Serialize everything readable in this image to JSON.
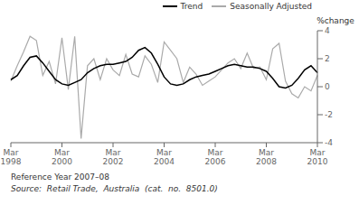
{
  "chart_data": {
    "type": "line",
    "categories": [
      "Mar\n1998",
      null,
      null,
      null,
      null,
      null,
      null,
      null,
      "Mar\n2000",
      null,
      null,
      null,
      null,
      null,
      null,
      null,
      "Mar\n2002",
      null,
      null,
      null,
      null,
      null,
      null,
      null,
      "Mar\n2004",
      null,
      null,
      null,
      null,
      null,
      null,
      null,
      "Mar\n2006",
      null,
      null,
      null,
      null,
      null,
      null,
      null,
      "Mar\n2008",
      null,
      null,
      null,
      null,
      null,
      null,
      null,
      "Mar\n2010"
    ],
    "series": [
      {
        "name": "Trend",
        "color": "#000000",
        "values": [
          0.5,
          0.8,
          1.5,
          2.1,
          2.2,
          1.7,
          1.1,
          0.5,
          0.2,
          0.1,
          0.3,
          0.5,
          1.0,
          1.3,
          1.5,
          1.6,
          1.6,
          1.7,
          1.8,
          2.1,
          2.6,
          2.8,
          2.4,
          1.6,
          0.7,
          0.2,
          0.1,
          0.2,
          0.5,
          0.7,
          0.8,
          0.9,
          1.1,
          1.3,
          1.5,
          1.6,
          1.5,
          1.4,
          1.4,
          1.3,
          1.1,
          0.6,
          0.0,
          -0.1,
          0.1,
          0.6,
          1.2,
          1.5,
          1.0
        ]
      },
      {
        "name": "Seasonally Adjusted",
        "color": "#aaaaaa",
        "values": [
          0.4,
          1.5,
          2.5,
          3.6,
          3.3,
          0.8,
          1.8,
          0.2,
          3.5,
          -0.2,
          3.6,
          -3.7,
          1.5,
          2.0,
          0.5,
          2.0,
          1.2,
          0.8,
          2.3,
          0.9,
          0.7,
          2.2,
          1.6,
          0.3,
          3.2,
          2.6,
          2.0,
          0.3,
          1.4,
          0.9,
          0.1,
          0.4,
          0.7,
          1.2,
          1.7,
          2.0,
          1.3,
          2.4,
          1.3,
          1.4,
          0.5,
          2.7,
          3.1,
          0.4,
          -0.5,
          -0.8,
          0.0,
          -0.3,
          0.8
        ]
      }
    ],
    "ylabel": "%change",
    "ylim": [
      -4,
      4
    ],
    "yticks": [
      -4,
      -2,
      0,
      2,
      4
    ],
    "legend": "upper right",
    "annotations": [
      "Reference Year 2007–08",
      "Source:  Retail Trade,  Australia  (cat.  no.  8501.0)"
    ]
  }
}
